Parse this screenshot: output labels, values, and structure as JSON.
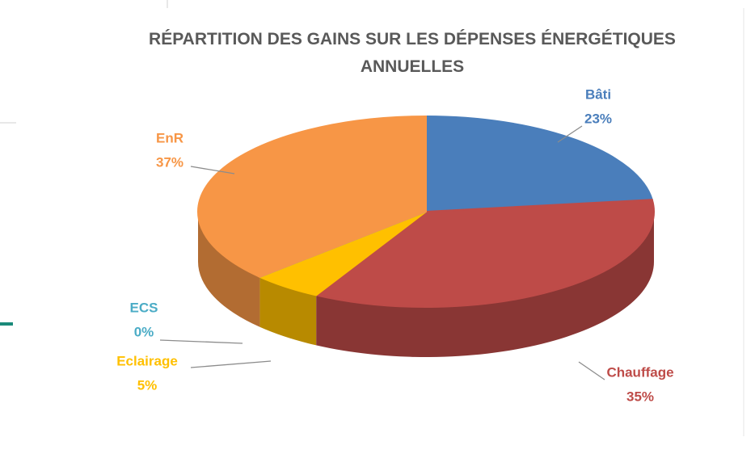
{
  "chart_data": {
    "type": "pie",
    "title": "RÉPARTITION DES GAINS SUR LES DÉPENSES ÉNERGÉTIQUES ANNUELLES",
    "categories": [
      "Bâti",
      "Chauffage",
      "Eclairage",
      "ECS",
      "EnR"
    ],
    "values": [
      23,
      35,
      5,
      0,
      37
    ],
    "value_labels": [
      "23%",
      "35%",
      "5%",
      "0%",
      "37%"
    ],
    "colors": [
      "#4a7ebb",
      "#be4b48",
      "#ffc000",
      "#4bacc6",
      "#f79646"
    ]
  }
}
